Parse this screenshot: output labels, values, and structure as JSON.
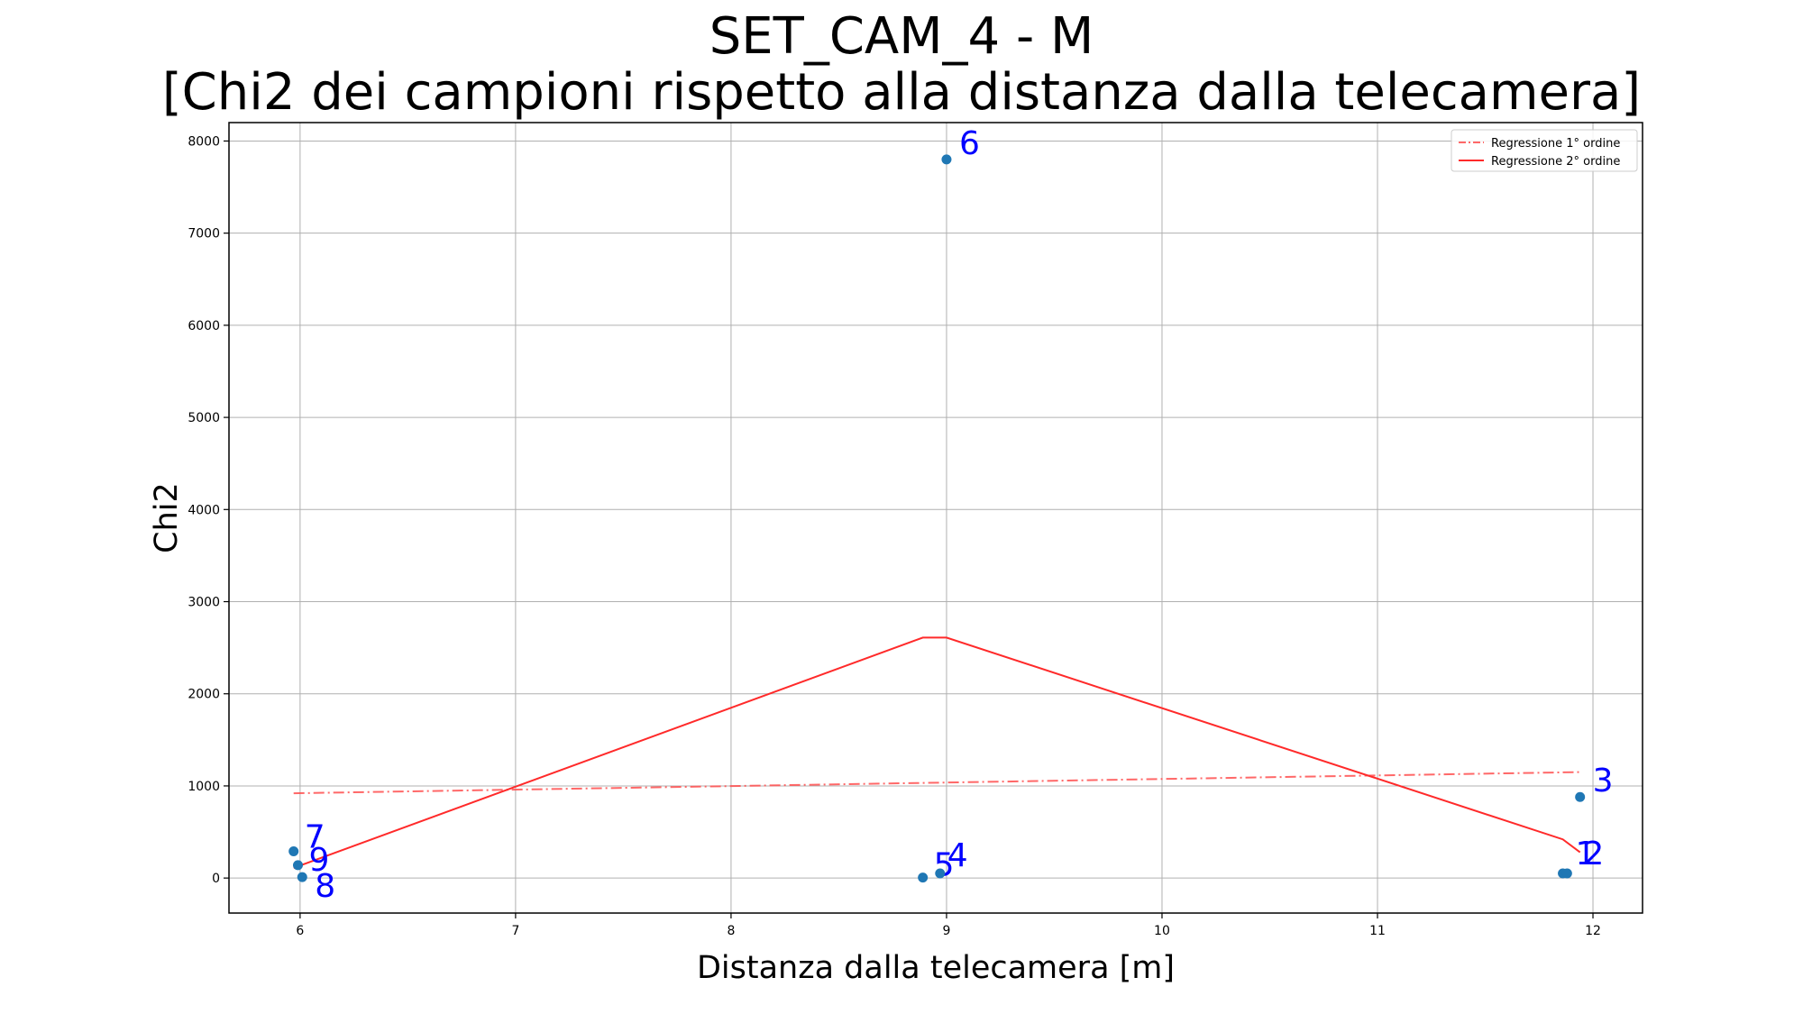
{
  "chart_data": {
    "type": "scatter",
    "title": "SET_CAM_4 - M",
    "subtitle": "[Chi2 dei campioni rispetto alla distanza dalla telecamera]",
    "xlabel": "Distanza dalla telecamera [m]",
    "ylabel": "Chi2",
    "xlim": [
      5.67,
      12.23
    ],
    "ylim": [
      -380,
      8200
    ],
    "x_ticks": [
      6,
      7,
      8,
      9,
      10,
      11,
      12
    ],
    "y_ticks": [
      0,
      1000,
      2000,
      3000,
      4000,
      5000,
      6000,
      7000,
      8000
    ],
    "grid": true,
    "points": [
      {
        "label": "7",
        "x": 5.97,
        "y": 290
      },
      {
        "label": "9",
        "x": 5.99,
        "y": 140
      },
      {
        "label": "8",
        "x": 6.01,
        "y": 10
      },
      {
        "label": "5",
        "x": 8.89,
        "y": 5
      },
      {
        "label": "4",
        "x": 8.97,
        "y": 50
      },
      {
        "label": "6",
        "x": 9.0,
        "y": 7800
      },
      {
        "label": "1",
        "x": 11.86,
        "y": 50
      },
      {
        "label": "2",
        "x": 11.88,
        "y": 50
      },
      {
        "label": "3",
        "x": 11.94,
        "y": 880
      }
    ],
    "series": [
      {
        "name": "Regressione 1° ordine",
        "style": "dashdot",
        "color": "#ff4d4d",
        "x": [
          5.97,
          11.94
        ],
        "y": [
          920,
          1150
        ]
      },
      {
        "name": "Regressione 2° ordine",
        "style": "solid",
        "color": "#ff2a2a",
        "x": [
          5.97,
          8.89,
          9.0,
          11.86,
          11.94
        ],
        "y": [
          110,
          2610,
          2610,
          420,
          280
        ]
      }
    ],
    "legend_position": "top-right",
    "point_color": "#1f77b4",
    "label_color": "#0000ff"
  }
}
